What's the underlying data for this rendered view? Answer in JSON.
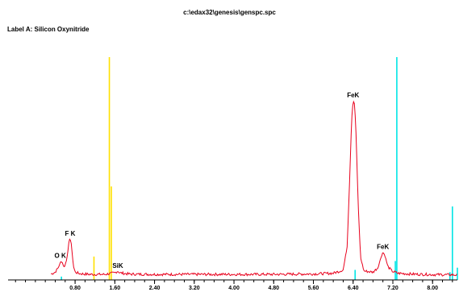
{
  "header": {
    "file_path": "c:\\edax32\\genesis\\genspc.spc",
    "label": "Label A: Silicon Oxynitride"
  },
  "chart_data": {
    "type": "line",
    "title": "",
    "xlabel": "",
    "ylabel": "",
    "xlim": [
      -0.55,
      8.5
    ],
    "ylim": [
      0,
      100
    ],
    "x_ticks": [
      0.8,
      1.6,
      2.4,
      3.2,
      4.0,
      4.8,
      5.6,
      6.4,
      7.2,
      8.0
    ],
    "x_tick_labels": [
      "0.80",
      "1.60",
      "2.40",
      "3.20",
      "4.00",
      "4.80",
      "5.60",
      "6.40",
      "7.20",
      "8.00"
    ],
    "series": [
      {
        "color": "#e8001c",
        "points": [
          [
            0.3,
            2.5
          ],
          [
            0.4,
            3.5
          ],
          [
            0.46,
            5.5
          ],
          [
            0.52,
            8.5
          ],
          [
            0.55,
            7.5
          ],
          [
            0.58,
            5.5
          ],
          [
            0.63,
            9
          ],
          [
            0.66,
            14
          ],
          [
            0.68,
            17.5
          ],
          [
            0.7,
            18.5
          ],
          [
            0.72,
            17
          ],
          [
            0.74,
            12
          ],
          [
            0.77,
            6
          ],
          [
            0.8,
            3.5
          ],
          [
            0.9,
            2.8
          ],
          [
            1.1,
            2.5
          ],
          [
            1.4,
            2.5
          ],
          [
            1.6,
            3.2
          ],
          [
            1.66,
            4.0
          ],
          [
            1.7,
            3.2
          ],
          [
            1.9,
            2.6
          ],
          [
            2.4,
            2.5
          ],
          [
            3.2,
            2.5
          ],
          [
            4.0,
            2.5
          ],
          [
            4.8,
            2.5
          ],
          [
            5.6,
            2.7
          ],
          [
            6.0,
            3.0
          ],
          [
            6.2,
            4.5
          ],
          [
            6.28,
            15
          ],
          [
            6.33,
            45
          ],
          [
            6.37,
            72
          ],
          [
            6.4,
            80.5
          ],
          [
            6.43,
            79
          ],
          [
            6.46,
            65
          ],
          [
            6.5,
            35
          ],
          [
            6.55,
            10
          ],
          [
            6.62,
            4
          ],
          [
            6.8,
            3.5
          ],
          [
            6.9,
            5.5
          ],
          [
            6.96,
            10
          ],
          [
            7.0,
            12.5
          ],
          [
            7.04,
            11
          ],
          [
            7.1,
            6
          ],
          [
            7.18,
            4
          ],
          [
            7.3,
            3.0
          ],
          [
            7.6,
            2.6
          ],
          [
            8.0,
            2.4
          ],
          [
            8.4,
            2.3
          ],
          [
            8.5,
            2.2
          ]
        ]
      }
    ],
    "markers": [
      {
        "x": 0.525,
        "height": 1.5,
        "color": "#00e5e5"
      },
      {
        "x": 1.18,
        "height": 10.5,
        "color": "#ffe000"
      },
      {
        "x": 1.49,
        "height": 100,
        "color": "#ffe000"
      },
      {
        "x": 1.53,
        "height": 42,
        "color": "#ffe000"
      },
      {
        "x": 6.44,
        "height": 4.5,
        "color": "#00e5e5"
      },
      {
        "x": 7.25,
        "height": 8.5,
        "color": "#00e5e5"
      },
      {
        "x": 7.28,
        "height": 100,
        "color": "#00e5e5"
      },
      {
        "x": 8.35,
        "height": 3.5,
        "color": "#00e5e5"
      },
      {
        "x": 8.4,
        "height": 33,
        "color": "#00e5e5"
      },
      {
        "x": 8.5,
        "height": 5.5,
        "color": "#00e5e5"
      }
    ],
    "annotations": [
      {
        "text": "O K",
        "x": 0.5,
        "y": 8.5
      },
      {
        "text": "F K",
        "x": 0.7,
        "y": 18.5
      },
      {
        "text": "SiK",
        "x": 1.66,
        "y": 4.0
      },
      {
        "text": "FeK",
        "x": 6.4,
        "y": 80.5
      },
      {
        "text": "FeK",
        "x": 7.0,
        "y": 12.5
      }
    ]
  }
}
